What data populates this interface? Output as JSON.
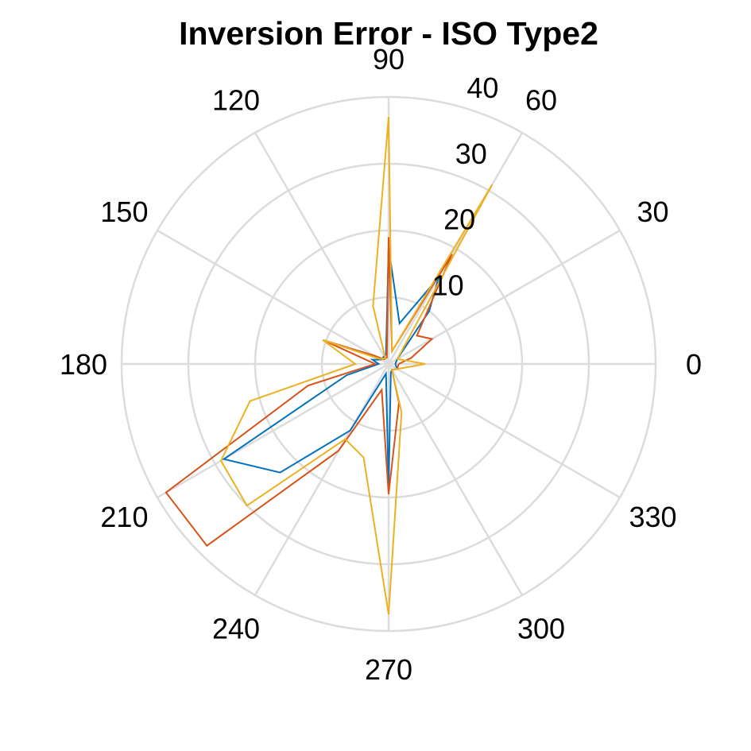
{
  "chart_data": {
    "type": "polar-line",
    "title": "Inversion Error - ISO Type2",
    "theta_ticks": [
      "0",
      "30",
      "60",
      "90",
      "120",
      "150",
      "180",
      "210",
      "240",
      "270",
      "300",
      "330"
    ],
    "r_ticks": [
      "10",
      "20",
      "30",
      "40"
    ],
    "r_lim": [
      0,
      40
    ],
    "grid": true,
    "series": [
      {
        "color": "#0072BD",
        "points": [
          [
            0,
            1
          ],
          [
            30,
            1.5
          ],
          [
            52.5,
            10
          ],
          [
            60,
            15
          ],
          [
            75,
            6.3
          ],
          [
            90,
            17.5
          ],
          [
            105,
            1.5
          ],
          [
            150,
            1.3
          ],
          [
            165,
            2.5
          ],
          [
            180,
            1.5
          ],
          [
            195,
            6.5
          ],
          [
            210,
            28.5
          ],
          [
            225,
            23
          ],
          [
            240,
            11.5
          ],
          [
            255,
            1.5
          ],
          [
            270,
            18.5
          ],
          [
            285,
            1.3
          ],
          [
            300,
            1
          ],
          [
            330,
            1.5
          ]
        ]
      },
      {
        "color": "#D95319",
        "points": [
          [
            0,
            1.5
          ],
          [
            15,
            3.5
          ],
          [
            30,
            7.5
          ],
          [
            45,
            6
          ],
          [
            60,
            19
          ],
          [
            75,
            2
          ],
          [
            90,
            19
          ],
          [
            105,
            1
          ],
          [
            135,
            1
          ],
          [
            150,
            2.5
          ],
          [
            160,
            10.5
          ],
          [
            180,
            2
          ],
          [
            195,
            12.5
          ],
          [
            210,
            38.5
          ],
          [
            225,
            38.5
          ],
          [
            240,
            15
          ],
          [
            255,
            4
          ],
          [
            270,
            19.5
          ],
          [
            285,
            6
          ],
          [
            300,
            1
          ],
          [
            330,
            1.5
          ]
        ]
      },
      {
        "color": "#EDB120",
        "points": [
          [
            0,
            5.5
          ],
          [
            30,
            1.5
          ],
          [
            60,
            31
          ],
          [
            75,
            2
          ],
          [
            90,
            37
          ],
          [
            105,
            9
          ],
          [
            120,
            1
          ],
          [
            150,
            1.5
          ],
          [
            160,
            10.5
          ],
          [
            180,
            5
          ],
          [
            195,
            21.5
          ],
          [
            210,
            29
          ],
          [
            225,
            30
          ],
          [
            240,
            13
          ],
          [
            255,
            14.5
          ],
          [
            270,
            37.5
          ],
          [
            285,
            7.5
          ],
          [
            300,
            1
          ],
          [
            330,
            1.5
          ]
        ]
      }
    ]
  }
}
